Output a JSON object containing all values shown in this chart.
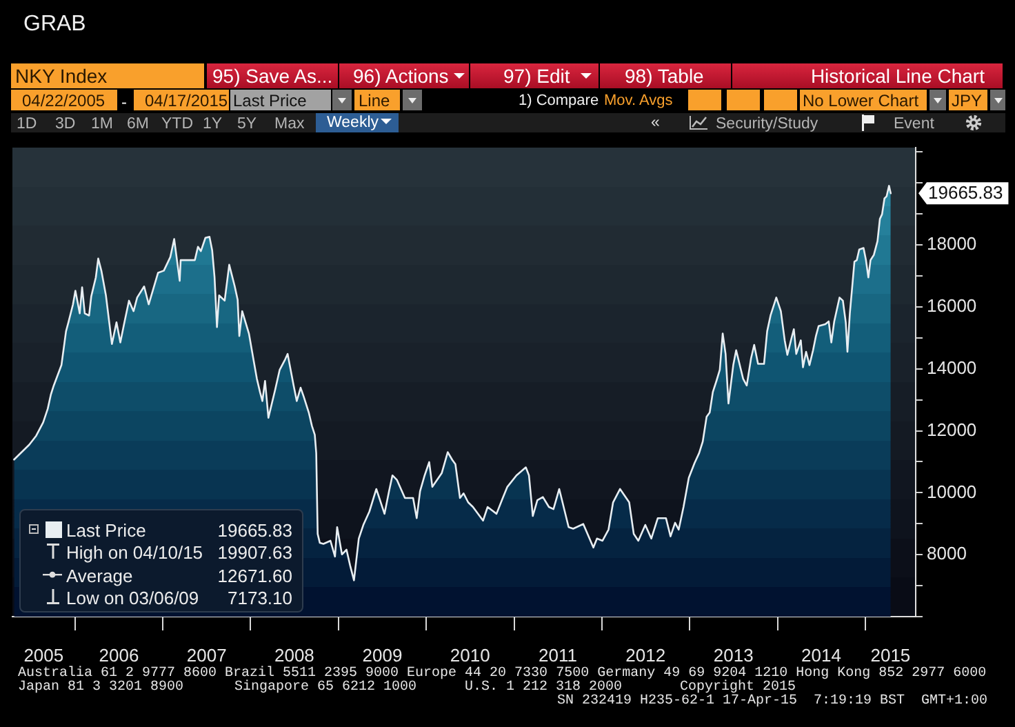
{
  "chart_data": {
    "type": "area",
    "title": "GRAB",
    "x": [
      "2005-04-22",
      "2005-06-24",
      "2005-07-23",
      "2005-08-21",
      "2005-09-09",
      "2005-09-22",
      "2005-10-04",
      "2005-11-05",
      "2005-11-24",
      "2005-12-04",
      "2005-12-23",
      "2006-01-02",
      "2006-01-20",
      "2006-01-30",
      "2006-02-10",
      "2006-02-28",
      "2006-03-09",
      "2006-03-28",
      "2006-04-07",
      "2006-04-20",
      "2006-05-09",
      "2006-06-03",
      "2006-06-22",
      "2006-07-08",
      "2006-07-25",
      "2006-08-13",
      "2006-09-01",
      "2006-09-16",
      "2006-10-15",
      "2006-11-03",
      "2006-12-12",
      "2007-01-05",
      "2007-02-01",
      "2007-02-17",
      "2007-03-12",
      "2007-03-16",
      "2007-05-14",
      "2007-05-27",
      "2007-06-08",
      "2007-06-27",
      "2007-07-14",
      "2007-07-25",
      "2007-08-04",
      "2007-08-14",
      "2007-08-23",
      "2007-09-15",
      "2007-10-04",
      "2007-10-27",
      "2007-11-08",
      "2007-11-15",
      "2007-11-27",
      "2007-12-25",
      "2008-01-12",
      "2008-01-27",
      "2008-02-09",
      "2008-02-19",
      "2008-03-01",
      "2008-03-15",
      "2008-04-12",
      "2008-05-01",
      "2008-05-24",
      "2008-06-03",
      "2008-06-28",
      "2008-07-11",
      "2008-07-27",
      "2008-08-09",
      "2008-08-30",
      "2008-09-12",
      "2008-09-24",
      "2008-09-30",
      "2008-10-06",
      "2008-10-15",
      "2008-10-30",
      "2008-11-28",
      "2008-12-17",
      "2008-12-26",
      "2009-01-15",
      "2009-02-03",
      "2009-02-18",
      "2009-03-06",
      "2009-03-26",
      "2009-04-14",
      "2009-05-09",
      "2009-06-07",
      "2009-07-11",
      "2009-07-30",
      "2009-08-13",
      "2009-09-01",
      "2009-10-04",
      "2009-11-07",
      "2009-11-22",
      "2009-12-06",
      "2009-12-25",
      "2010-01-13",
      "2010-01-26",
      "2010-03-06",
      "2010-03-31",
      "2010-04-19",
      "2010-05-02",
      "2010-05-21",
      "2010-06-05",
      "2010-06-24",
      "2010-07-14",
      "2010-08-25",
      "2010-09-13",
      "2010-10-20",
      "2010-11-15",
      "2010-12-04",
      "2011-01-11",
      "2011-02-19",
      "2011-03-04",
      "2011-03-20",
      "2011-04-08",
      "2011-05-01",
      "2011-05-26",
      "2011-06-14",
      "2011-07-08",
      "2011-08-16",
      "2011-09-04",
      "2011-10-16",
      "2011-11-27",
      "2011-12-12",
      "2012-01-04",
      "2012-01-29",
      "2012-02-17",
      "2012-03-17",
      "2012-04-24",
      "2012-05-13",
      "2012-06-01",
      "2012-06-30",
      "2012-07-25",
      "2012-08-21",
      "2012-09-24",
      "2012-10-13",
      "2012-11-01",
      "2012-11-16",
      "2012-12-06",
      "2012-12-28",
      "2013-01-21",
      "2013-02-09",
      "2013-02-24",
      "2013-03-12",
      "2013-03-25",
      "2013-04-07",
      "2013-04-22",
      "2013-05-06",
      "2013-05-18",
      "2013-05-30",
      "2013-06-11",
      "2013-07-01",
      "2013-07-13",
      "2013-08-11",
      "2013-08-26",
      "2013-09-13",
      "2013-09-26",
      "2013-10-12",
      "2013-11-06",
      "2013-11-19",
      "2013-12-03",
      "2013-12-27",
      "2014-01-15",
      "2014-01-31",
      "2014-02-11",
      "2014-02-26",
      "2014-03-10",
      "2014-03-20",
      "2014-04-08",
      "2014-04-17",
      "2014-04-30",
      "2014-05-14",
      "2014-05-29",
      "2014-06-10",
      "2014-06-21",
      "2014-07-19",
      "2014-08-02",
      "2014-08-13",
      "2014-08-25",
      "2014-09-16",
      "2014-09-30",
      "2014-10-12",
      "2014-10-19",
      "2014-10-29",
      "2014-11-08",
      "2014-11-17",
      "2014-11-27",
      "2014-12-07",
      "2014-12-25",
      "2015-01-04",
      "2015-01-14",
      "2015-01-23",
      "2015-02-06",
      "2015-02-21",
      "2015-03-03",
      "2015-03-12",
      "2015-03-22",
      "2015-03-31",
      "2015-04-10",
      "2015-04-17"
    ],
    "series": [
      {
        "name": "Last Price",
        "color": "#e8eef2",
        "values": [
          11070,
          11550,
          11840,
          12270,
          12710,
          13170,
          13460,
          14120,
          15210,
          15500,
          16080,
          16520,
          15790,
          16630,
          15790,
          15720,
          16340,
          16950,
          17560,
          17170,
          16370,
          14800,
          15500,
          14850,
          15500,
          16200,
          15860,
          16300,
          16660,
          16080,
          17100,
          17170,
          17610,
          18190,
          16840,
          17510,
          17510,
          17940,
          17800,
          18230,
          18260,
          17830,
          16950,
          15350,
          16370,
          16200,
          17360,
          16660,
          16230,
          15060,
          15860,
          15140,
          14340,
          13680,
          13250,
          12960,
          13610,
          12420,
          13320,
          13970,
          14310,
          14480,
          13460,
          12960,
          13390,
          13100,
          12590,
          12160,
          11870,
          11280,
          8670,
          8380,
          8350,
          8450,
          7940,
          8890,
          8010,
          8160,
          7650,
          7173.1,
          8520,
          8960,
          9390,
          10120,
          9320,
          10050,
          10560,
          10410,
          9830,
          9830,
          9180,
          10050,
          10560,
          10990,
          10190,
          10630,
          11310,
          11060,
          10920,
          9830,
          9980,
          9690,
          9540,
          9100,
          9540,
          9320,
          9830,
          10190,
          10560,
          10820,
          10560,
          9250,
          9760,
          9860,
          9540,
          9470,
          10120,
          8890,
          8840,
          8990,
          8230,
          8520,
          8450,
          8810,
          9690,
          10120,
          9690,
          8670,
          8450,
          8960,
          8520,
          9180,
          9180,
          8590,
          9030,
          8810,
          9540,
          10480,
          10960,
          11280,
          11650,
          12450,
          12590,
          13250,
          13610,
          13970,
          15140,
          14480,
          12880,
          14120,
          14600,
          13680,
          13460,
          14340,
          14770,
          14160,
          14160,
          15210,
          15720,
          16300,
          15860,
          14920,
          14450,
          14920,
          15280,
          14480,
          14920,
          14050,
          14550,
          14120,
          14600,
          15060,
          15380,
          15440,
          15530,
          14850,
          15530,
          16300,
          16200,
          15500,
          14550,
          15790,
          16660,
          17460,
          17510,
          17850,
          17900,
          17510,
          16950,
          17510,
          17680,
          18120,
          18840,
          18990,
          19500,
          19570,
          19907.63,
          19665.83
        ]
      }
    ],
    "xlim": [
      "2005-04-15",
      "2015-07-30"
    ],
    "xticks": [
      {
        "value": "2005-08-23",
        "label": "2005"
      },
      {
        "value": "2006-01-01",
        "label": null
      },
      {
        "value": "2006-07-02",
        "label": "2006"
      },
      {
        "value": "2007-01-01",
        "label": null
      },
      {
        "value": "2007-07-02",
        "label": "2007"
      },
      {
        "value": "2008-01-01",
        "label": null
      },
      {
        "value": "2008-07-01",
        "label": "2008"
      },
      {
        "value": "2009-01-01",
        "label": null
      },
      {
        "value": "2009-07-02",
        "label": "2009"
      },
      {
        "value": "2010-01-01",
        "label": null
      },
      {
        "value": "2010-07-02",
        "label": "2010"
      },
      {
        "value": "2011-01-01",
        "label": null
      },
      {
        "value": "2011-07-02",
        "label": "2011"
      },
      {
        "value": "2012-01-01",
        "label": null
      },
      {
        "value": "2012-07-01",
        "label": "2012"
      },
      {
        "value": "2013-01-01",
        "label": null
      },
      {
        "value": "2013-07-02",
        "label": "2013"
      },
      {
        "value": "2014-01-01",
        "label": null
      },
      {
        "value": "2014-07-02",
        "label": "2014"
      },
      {
        "value": "2015-01-01",
        "label": null
      },
      {
        "value": "2015-04-16",
        "label": "2015"
      }
    ],
    "ylim": [
      6000,
      21150
    ],
    "yticks": [
      {
        "value": 6000,
        "label": null
      },
      {
        "value": 7000,
        "label": null
      },
      8000,
      {
        "value": 9000,
        "label": null
      },
      10000,
      {
        "value": 11000,
        "label": null
      },
      12000,
      {
        "value": 13000,
        "label": null
      },
      14000,
      {
        "value": 15000,
        "label": null
      },
      16000,
      {
        "value": 17000,
        "label": null
      },
      18000,
      {
        "value": 19000,
        "label": null
      },
      {
        "value": 20000,
        "label": null
      },
      {
        "value": 21000,
        "label": null
      }
    ],
    "legend": "bottom left",
    "marker": "none",
    "annotations": [
      "NKY Index",
      "95) Save As...",
      "96) Actions",
      "97) Edit",
      "98) Table",
      "Historical Line Chart",
      "04/22/2005",
      "-",
      "04/17/2015",
      "Last Price",
      "Line",
      "1) Compare",
      "Mov. Avgs",
      "No Lower Chart",
      "JPY",
      "1D",
      "3D",
      "1M",
      "6M",
      "YTD",
      "1Y",
      "5Y",
      "Max",
      "Weekly",
      "«",
      "Security/Study",
      "Event",
      "19665.83",
      "High on 04/10/15",
      "19907.63",
      "Average",
      "12671.60",
      "Low on 03/06/09",
      "7173.10",
      {
        "text": "19665.83",
        "x": "2015-04-17",
        "y": 19665.83
      },
      "Australia 61 2 9777 8600 Brazil 5511 2395 9000 Europe 44 20 7330 7500 Germany 49 69 9204 1210 Hong Kong 852 2977 6000",
      "Japan 81 3 3201 8900",
      "Singapore 65 6212 1000",
      "U.S. 1 212 318 2000",
      "Copyright 2015",
      "SN 232419 H235-62-1 17-Apr-15  7:19:19 BST  GMT+1:00"
    ]
  }
}
